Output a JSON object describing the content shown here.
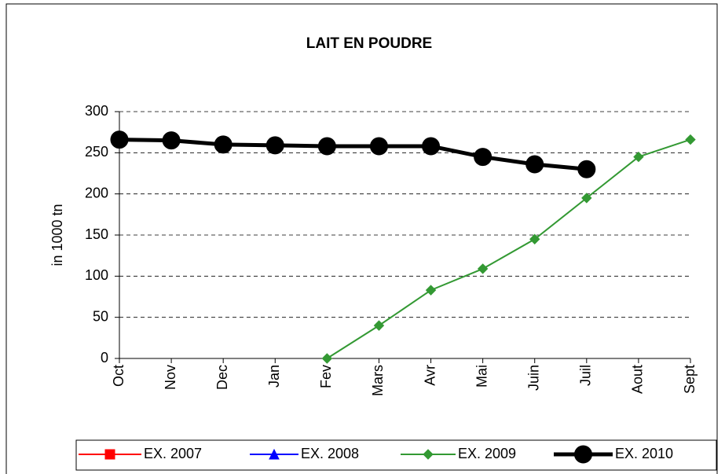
{
  "chart_data": {
    "type": "line",
    "title": "LAIT EN POUDRE",
    "y_label": "in 1000 tn",
    "categories": [
      "Oct",
      "Nov",
      "Dec",
      "Jan",
      "Fev",
      "Mars",
      "Avr",
      "Mai",
      "Juin",
      "Juil",
      "Aout",
      "Sept"
    ],
    "series": [
      {
        "name": "EX. 2007",
        "color": "#ff0000",
        "marker": "square",
        "values": [
          null,
          null,
          null,
          null,
          null,
          null,
          null,
          null,
          null,
          null,
          null,
          null
        ]
      },
      {
        "name": "EX. 2008",
        "color": "#0000ff",
        "marker": "triangle",
        "values": [
          null,
          null,
          null,
          null,
          null,
          null,
          null,
          null,
          null,
          null,
          null,
          null
        ]
      },
      {
        "name": "EX. 2009",
        "color": "#339933",
        "marker": "diamond",
        "values": [
          null,
          null,
          null,
          null,
          0,
          40,
          83,
          109,
          145,
          195,
          245,
          266
        ]
      },
      {
        "name": "EX. 2010",
        "color": "#000000",
        "marker": "circle",
        "values": [
          266,
          265,
          260,
          259,
          258,
          258,
          258,
          245,
          236,
          230,
          null,
          null
        ]
      }
    ],
    "ylim": [
      0,
      300
    ],
    "yticks": [
      0,
      50,
      100,
      150,
      200,
      250,
      300
    ],
    "grid": true,
    "legend": "bottom"
  }
}
